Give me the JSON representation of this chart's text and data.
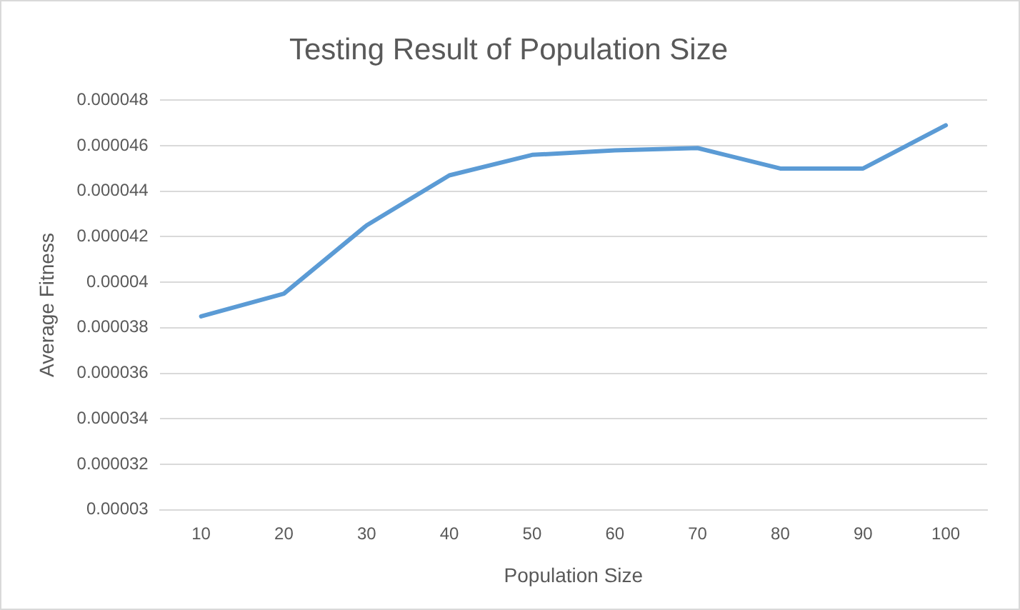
{
  "chart_data": {
    "type": "line",
    "title": "Testing Result of Population Size",
    "xlabel": "Population Size",
    "ylabel": "Average Fitness",
    "categories": [
      "10",
      "20",
      "30",
      "40",
      "50",
      "60",
      "70",
      "80",
      "90",
      "100"
    ],
    "series": [
      {
        "color": "#5b9bd5",
        "values": [
          3.85e-05,
          3.95e-05,
          4.25e-05,
          4.47e-05,
          4.56e-05,
          4.58e-05,
          4.59e-05,
          4.5e-05,
          4.5e-05,
          4.69e-05
        ]
      }
    ],
    "ylim": [
      3e-05,
      4.8e-05
    ],
    "yticks": [
      {
        "value": 3e-05,
        "label": "0.00003"
      },
      {
        "value": 3.2e-05,
        "label": "0.000032"
      },
      {
        "value": 3.4e-05,
        "label": "0.000034"
      },
      {
        "value": 3.6e-05,
        "label": "0.000036"
      },
      {
        "value": 3.8e-05,
        "label": "0.000038"
      },
      {
        "value": 4e-05,
        "label": "0.00004"
      },
      {
        "value": 4.2e-05,
        "label": "0.000042"
      },
      {
        "value": 4.4e-05,
        "label": "0.000044"
      },
      {
        "value": 4.6e-05,
        "label": "0.000046"
      },
      {
        "value": 4.8e-05,
        "label": "0.000048"
      }
    ],
    "grid": "y",
    "legend": false,
    "marker": "none",
    "line_style": "solid"
  }
}
